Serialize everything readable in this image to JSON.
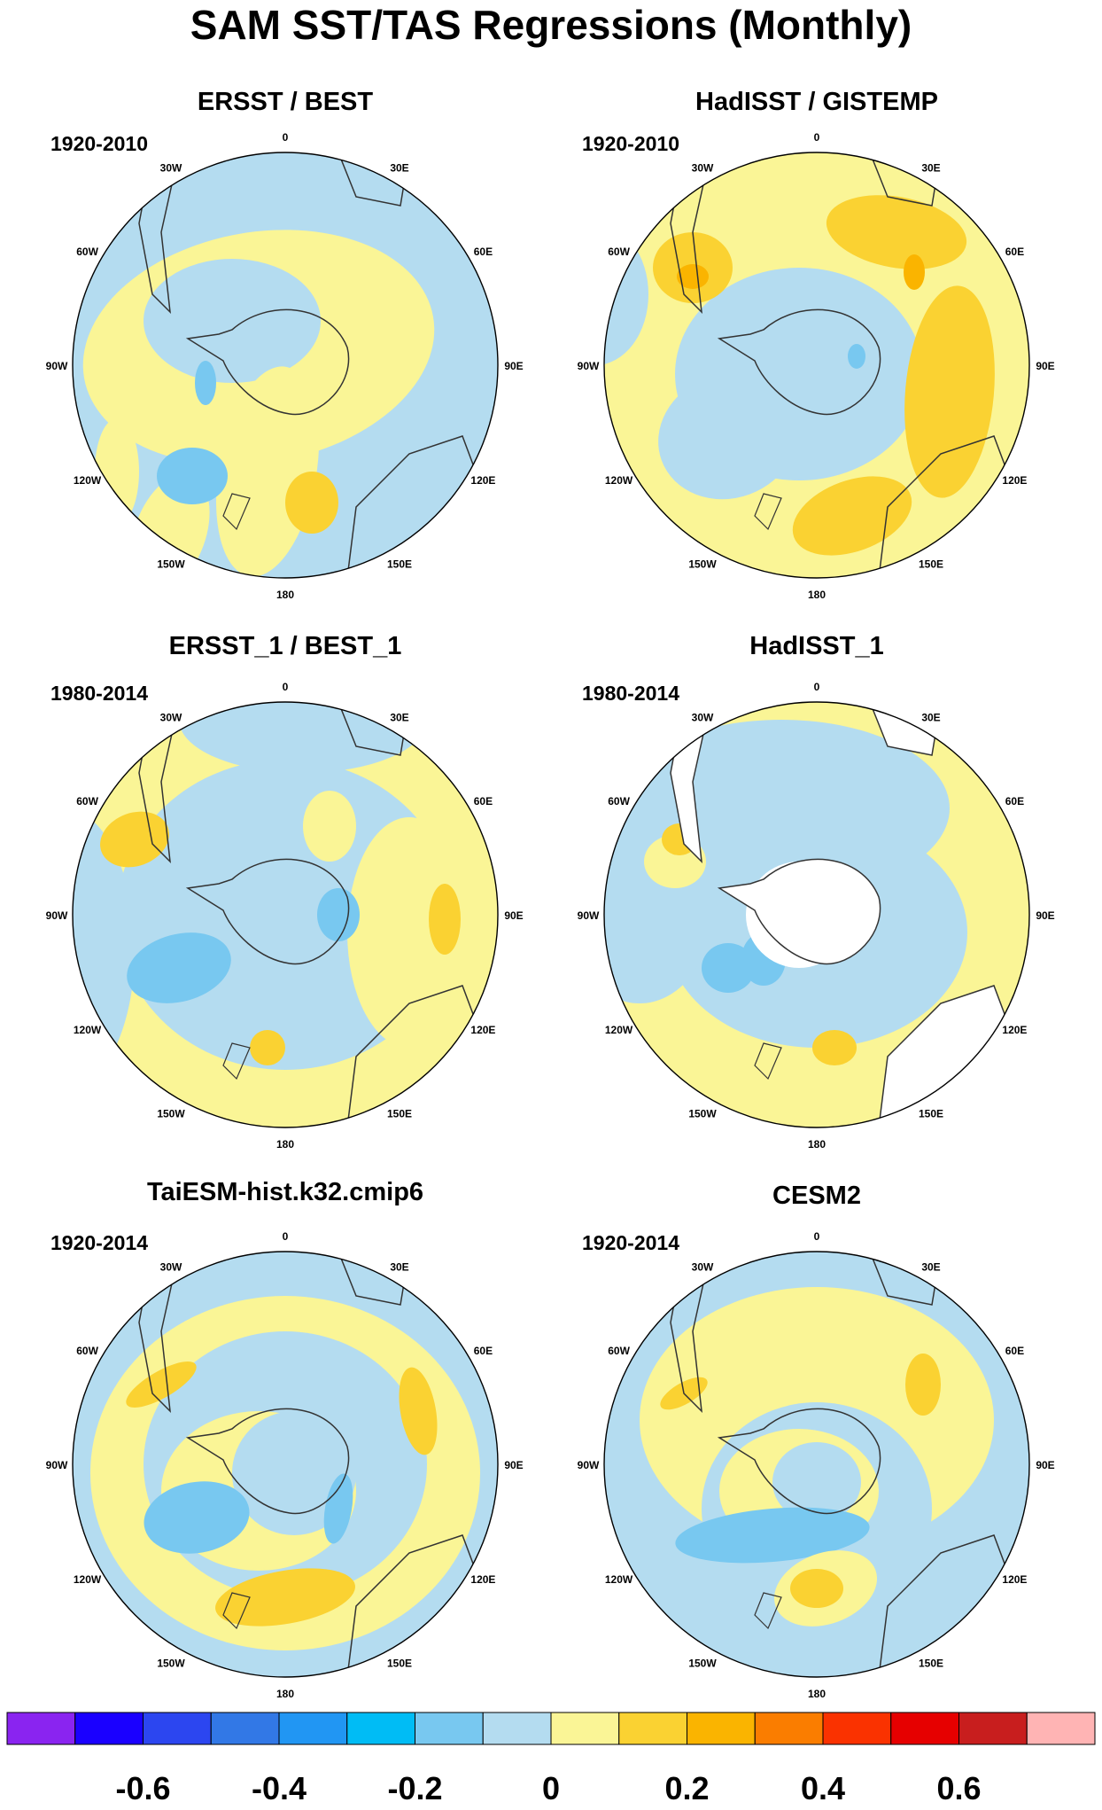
{
  "title": "SAM SST/TAS Regressions (Monthly)",
  "lon_labels": [
    "0",
    "30E",
    "60E",
    "90E",
    "120E",
    "150E",
    "180",
    "150W",
    "120W",
    "90W",
    "60W",
    "30W"
  ],
  "panels": [
    {
      "name": "ERSST / BEST",
      "period": "1920-2010"
    },
    {
      "name": "HadISST / GISTEMP",
      "period": "1920-2010"
    },
    {
      "name": "ERSST_1 / BEST_1",
      "period": "1980-2014"
    },
    {
      "name": "HadISST_1",
      "period": "1980-2014"
    },
    {
      "name": "TaiESM-hist.k32.cmip6",
      "period": "1920-2014"
    },
    {
      "name": "CESM2",
      "period": "1920-2014"
    }
  ],
  "colorbar": {
    "colors": [
      "#8a24f0",
      "#1a00ff",
      "#2c46f0",
      "#3278e6",
      "#2196f3",
      "#00bcf5",
      "#78c8f0",
      "#b4dcf0",
      "#faf596",
      "#fad232",
      "#fab400",
      "#fa7d00",
      "#fa3200",
      "#e60000",
      "#c81e1e",
      "#ffb4b4"
    ],
    "labels": [
      "-0.6",
      "-0.4",
      "-0.2",
      "0",
      "0.2",
      "0.4",
      "0.6"
    ]
  },
  "palette": {
    "neg_weak": "#b4dcf0",
    "neg_mid": "#78c8f0",
    "pos_weak": "#faf596",
    "pos_mid": "#fad232",
    "pos_strong": "#fab400",
    "missing": "#ffffff"
  }
}
